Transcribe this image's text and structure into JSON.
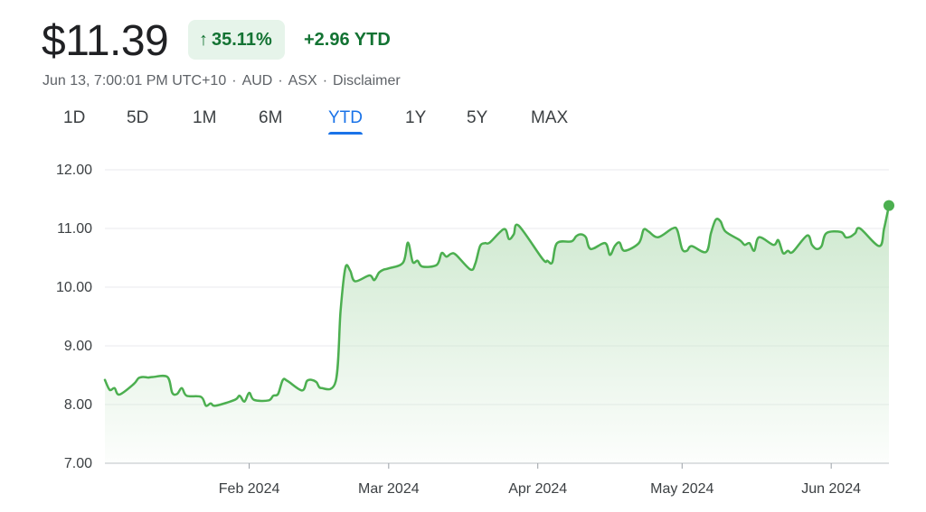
{
  "quote": {
    "price": "$11.39",
    "change_percent": "35.11%",
    "change_arrow_icon": "arrow-up-icon",
    "ytd_change": "+2.96 YTD",
    "meta": [
      "Jun 13, 7:00:01 PM UTC+10",
      "AUD",
      "ASX",
      "Disclaimer"
    ]
  },
  "tabs": [
    {
      "label": "1D"
    },
    {
      "label": "5D"
    },
    {
      "label": "1M"
    },
    {
      "label": "6M"
    },
    {
      "label": "YTD",
      "active": true
    },
    {
      "label": "1Y"
    },
    {
      "label": "5Y"
    },
    {
      "label": "MAX"
    }
  ],
  "colors": {
    "line": "#4caf50",
    "fill_top": "#c8e6c9",
    "accent": "#137333",
    "tab_active": "#1a73e8"
  },
  "chart_data": {
    "type": "area",
    "title": "",
    "xlabel": "",
    "ylabel": "",
    "ylim": [
      7.0,
      12.0
    ],
    "yticks": [
      "12.00",
      "11.00",
      "10.00",
      "9.00",
      "8.00",
      "7.00"
    ],
    "xticks": [
      "Feb 2024",
      "Mar 2024",
      "Apr 2024",
      "May 2024",
      "Jun 2024"
    ],
    "grid": true,
    "series": [
      {
        "x": [
          "2024-01-02",
          "2024-01-03",
          "2024-01-04",
          "2024-01-05",
          "2024-01-08",
          "2024-01-09",
          "2024-01-10",
          "2024-01-11",
          "2024-01-12",
          "2024-01-15",
          "2024-01-16",
          "2024-01-17",
          "2024-01-18",
          "2024-01-19",
          "2024-01-22",
          "2024-01-23",
          "2024-01-24",
          "2024-01-25",
          "2024-01-29",
          "2024-01-30",
          "2024-01-31",
          "2024-02-01",
          "2024-02-02",
          "2024-02-05",
          "2024-02-06",
          "2024-02-07",
          "2024-02-08",
          "2024-02-09",
          "2024-02-12",
          "2024-02-13",
          "2024-02-14",
          "2024-02-15",
          "2024-02-16",
          "2024-02-19",
          "2024-02-20",
          "2024-02-21",
          "2024-02-22",
          "2024-02-23",
          "2024-02-26",
          "2024-02-27",
          "2024-02-28",
          "2024-02-29",
          "2024-03-01",
          "2024-03-04",
          "2024-03-05",
          "2024-03-06",
          "2024-03-07",
          "2024-03-08",
          "2024-03-11",
          "2024-03-12",
          "2024-03-13",
          "2024-03-14",
          "2024-03-15",
          "2024-03-18",
          "2024-03-19",
          "2024-03-20",
          "2024-03-21",
          "2024-03-22",
          "2024-03-25",
          "2024-03-26",
          "2024-03-27",
          "2024-03-28",
          "2024-04-02",
          "2024-04-03",
          "2024-04-04",
          "2024-04-05",
          "2024-04-08",
          "2024-04-09",
          "2024-04-10",
          "2024-04-11",
          "2024-04-12",
          "2024-04-15",
          "2024-04-16",
          "2024-04-17",
          "2024-04-18",
          "2024-04-19",
          "2024-04-22",
          "2024-04-23",
          "2024-04-24",
          "2024-04-26",
          "2024-04-29",
          "2024-04-30",
          "2024-05-01",
          "2024-05-02",
          "2024-05-03",
          "2024-05-06",
          "2024-05-07",
          "2024-05-08",
          "2024-05-09",
          "2024-05-10",
          "2024-05-13",
          "2024-05-14",
          "2024-05-15",
          "2024-05-16",
          "2024-05-17",
          "2024-05-20",
          "2024-05-21",
          "2024-05-22",
          "2024-05-23",
          "2024-05-24",
          "2024-05-27",
          "2024-05-28",
          "2024-05-29",
          "2024-05-30",
          "2024-05-31",
          "2024-06-03",
          "2024-06-04",
          "2024-06-05",
          "2024-06-06",
          "2024-06-07",
          "2024-06-11",
          "2024-06-12",
          "2024-06-13"
        ],
        "values": [
          8.42,
          8.25,
          8.28,
          8.17,
          8.35,
          8.45,
          8.47,
          8.46,
          8.47,
          8.47,
          8.2,
          8.18,
          8.28,
          8.15,
          8.13,
          7.98,
          8.02,
          7.98,
          8.08,
          8.15,
          8.05,
          8.2,
          8.08,
          8.07,
          8.15,
          8.18,
          8.42,
          8.4,
          8.24,
          8.4,
          8.42,
          8.38,
          8.28,
          8.4,
          9.6,
          10.33,
          10.28,
          10.1,
          10.2,
          10.12,
          10.25,
          10.3,
          10.32,
          10.42,
          10.76,
          10.43,
          10.45,
          10.35,
          10.38,
          10.58,
          10.52,
          10.57,
          10.55,
          10.3,
          10.4,
          10.7,
          10.75,
          10.76,
          10.99,
          10.82,
          10.9,
          11.05,
          10.48,
          10.45,
          10.42,
          10.75,
          10.78,
          10.87,
          10.9,
          10.85,
          10.65,
          10.75,
          10.55,
          10.7,
          10.76,
          10.62,
          10.75,
          10.98,
          10.95,
          10.85,
          11.0,
          10.97,
          10.65,
          10.62,
          10.7,
          10.6,
          10.92,
          11.15,
          11.12,
          10.95,
          10.8,
          10.72,
          10.75,
          10.62,
          10.85,
          10.72,
          10.8,
          10.58,
          10.62,
          10.6,
          10.88,
          10.72,
          10.65,
          10.7,
          10.92,
          10.94,
          10.85,
          10.86,
          10.92,
          11.0,
          10.7,
          11.0,
          11.39
        ]
      }
    ]
  }
}
